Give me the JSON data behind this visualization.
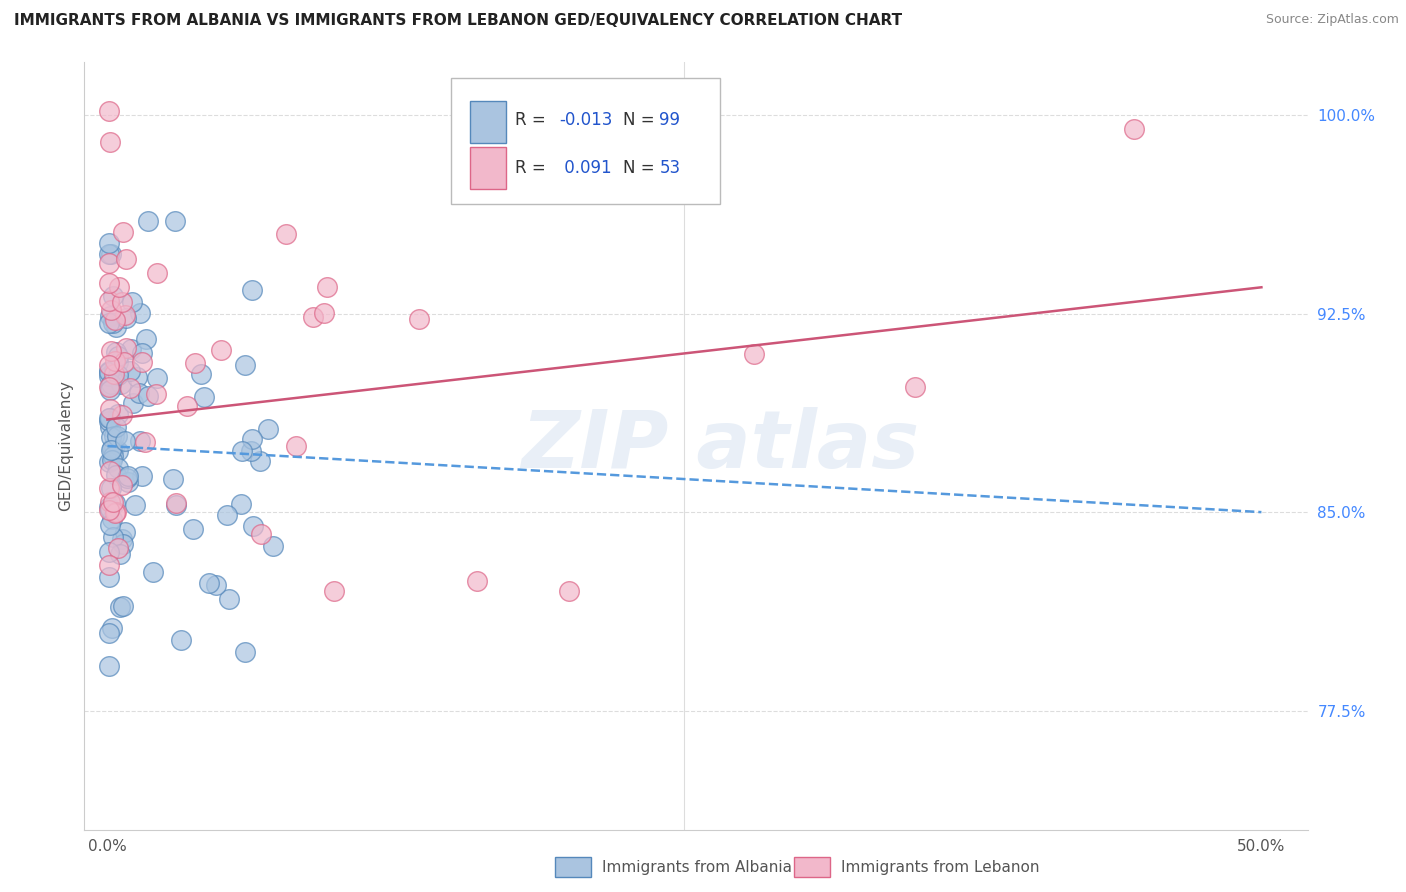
{
  "title": "IMMIGRANTS FROM ALBANIA VS IMMIGRANTS FROM LEBANON GED/EQUIVALENCY CORRELATION CHART",
  "source": "Source: ZipAtlas.com",
  "ylabel": "GED/Equivalency",
  "albania_color": "#aac4e0",
  "albania_edge": "#5588bb",
  "lebanon_color": "#f2b8cb",
  "lebanon_edge": "#dd6688",
  "albania_label": "Immigrants from Albania",
  "lebanon_label": "Immigrants from Lebanon",
  "r_albania": "-0.013",
  "n_albania": "99",
  "r_lebanon": "0.091",
  "n_lebanon": "53",
  "trend_albania_color": "#5599dd",
  "trend_lebanon_color": "#cc5577",
  "background_color": "#ffffff",
  "grid_color": "#dddddd",
  "ytick_color": "#4488ff",
  "ymin": 73.0,
  "ymax": 102.0,
  "xmin": -1.0,
  "xmax": 52.0,
  "legend_r_color": "#2255cc",
  "legend_n_color": "#2255cc"
}
